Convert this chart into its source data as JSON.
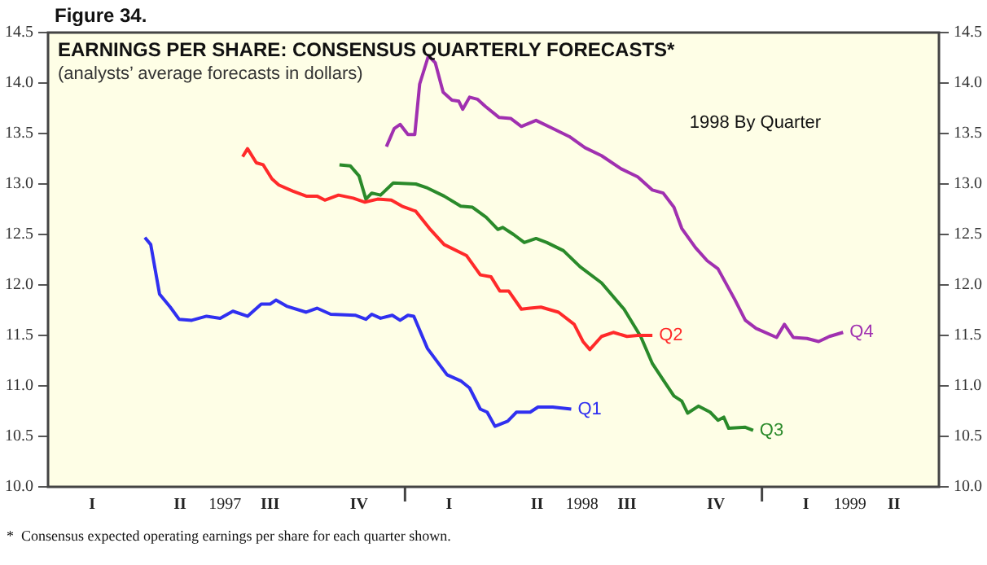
{
  "chart_data": {
    "type": "line",
    "title": "EARNINGS PER SHARE: CONSENSUS QUARTERLY FORECASTS*",
    "subtitle": "(analysts’ average forecasts in dollars)",
    "annotations": [
      "Figure 34.",
      "1998 By Quarter",
      "*  Consensus expected operating earnings per share for each quarter shown."
    ],
    "xlim": [
      "1997-01-01",
      "1999-07-01"
    ],
    "xticks": [
      {
        "value": "1997-02-15",
        "label": "I"
      },
      {
        "value": "1997-05-16",
        "label": "II"
      },
      {
        "value": "1997-08-16",
        "label": "III"
      },
      {
        "value": "1997-11-15",
        "label": "IV"
      },
      {
        "value": "1998-02-15",
        "label": "I"
      },
      {
        "value": "1998-05-16",
        "label": "II"
      },
      {
        "value": "1998-08-16",
        "label": "III"
      },
      {
        "value": "1998-11-15",
        "label": "IV"
      },
      {
        "value": "1999-02-15",
        "label": "I"
      },
      {
        "value": "1999-05-16",
        "label": "II"
      },
      {
        "value": "1998-01-01",
        "label": null
      },
      {
        "value": "1999-01-01",
        "label": null
      },
      {
        "value": "1997-07-01",
        "label": "1997"
      },
      {
        "value": "1998-07-01",
        "label": "1998"
      },
      {
        "value": "1999-04-01",
        "label": "1999"
      }
    ],
    "ylim": [
      10,
      14.5
    ],
    "yticks": [
      {
        "value": 10,
        "label": "10.0"
      },
      {
        "value": 10.5,
        "label": "10.5"
      },
      {
        "value": 11,
        "label": "11.0"
      },
      {
        "value": 11.5,
        "label": "11.5"
      },
      {
        "value": 12,
        "label": "12.0"
      },
      {
        "value": 12.5,
        "label": "12.5"
      },
      {
        "value": 13,
        "label": "13.0"
      },
      {
        "value": 13.5,
        "label": "13.5"
      },
      {
        "value": 14,
        "label": "14.0"
      },
      {
        "value": 14.5,
        "label": "14.5"
      }
    ],
    "y2lim": [
      10,
      14.5
    ],
    "y2ticks": [
      {
        "value": 10,
        "label": "10.0"
      },
      {
        "value": 10.5,
        "label": "10.5"
      },
      {
        "value": 11,
        "label": "11.0"
      },
      {
        "value": 11.5,
        "label": "11.5"
      },
      {
        "value": 12,
        "label": "12.0"
      },
      {
        "value": 12.5,
        "label": "12.5"
      },
      {
        "value": 13,
        "label": "13.0"
      },
      {
        "value": 13.5,
        "label": "13.5"
      },
      {
        "value": 14,
        "label": "14.0"
      },
      {
        "value": 14.5,
        "label": "14.5"
      }
    ],
    "marker": "none",
    "line_style": "solid",
    "grid": false,
    "legend": false,
    "series": [
      {
        "name": "Q1",
        "color": "#3030f0",
        "x": [
          "1997-04-10",
          "1997-04-16",
          "1997-04-25",
          "1997-05-06",
          "1997-05-15",
          "1997-05-28",
          "1997-06-12",
          "1997-06-26",
          "1997-07-09",
          "1997-07-24",
          "1997-08-07",
          "1997-08-16",
          "1997-08-22",
          "1997-09-02",
          "1997-09-22",
          "1997-10-03",
          "1997-10-17",
          "1997-11-11",
          "1997-11-22",
          "1997-11-28",
          "1997-12-07",
          "1997-12-19",
          "1997-12-27",
          "1998-01-04",
          "1998-01-10",
          "1998-01-24",
          "1998-02-13",
          "1998-02-27",
          "1998-03-08",
          "1998-03-19",
          "1998-03-26",
          "1998-04-03",
          "1998-04-16",
          "1998-04-25",
          "1998-05-09",
          "1998-05-17",
          "1998-06-01",
          "1998-06-20"
        ],
        "values": [
          12.47,
          12.4,
          11.91,
          11.78,
          11.66,
          11.65,
          11.69,
          11.67,
          11.74,
          11.69,
          11.81,
          11.81,
          11.85,
          11.79,
          11.73,
          11.77,
          11.71,
          11.7,
          11.66,
          11.71,
          11.67,
          11.7,
          11.65,
          11.7,
          11.69,
          11.37,
          11.11,
          11.05,
          10.98,
          10.77,
          10.74,
          10.6,
          10.65,
          10.74,
          10.74,
          10.79,
          10.79,
          10.77
        ]
      },
      {
        "name": "Q2",
        "color": "#ff2a2a",
        "x": [
          "1997-07-19",
          "1997-07-24",
          "1997-08-02",
          "1997-08-09",
          "1997-08-18",
          "1997-08-25",
          "1997-09-08",
          "1997-09-22",
          "1997-10-03",
          "1997-10-11",
          "1997-10-25",
          "1997-11-09",
          "1997-11-21",
          "1997-12-04",
          "1997-12-18",
          "1997-12-29",
          "1998-01-12",
          "1998-01-26",
          "1998-02-10",
          "1998-03-05",
          "1998-03-19",
          "1998-03-30",
          "1998-04-08",
          "1998-04-17",
          "1998-04-30",
          "1998-05-09",
          "1998-05-20",
          "1998-06-07",
          "1998-06-23",
          "1998-07-02",
          "1998-07-09",
          "1998-07-21",
          "1998-08-02",
          "1998-08-16",
          "1998-08-27",
          "1998-09-11"
        ],
        "values": [
          13.27,
          13.35,
          13.21,
          13.19,
          13.05,
          12.99,
          12.93,
          12.88,
          12.88,
          12.84,
          12.89,
          12.86,
          12.82,
          12.85,
          12.84,
          12.78,
          12.73,
          12.56,
          12.4,
          12.29,
          12.1,
          12.08,
          11.94,
          11.94,
          11.76,
          11.77,
          11.78,
          11.73,
          11.61,
          11.44,
          11.36,
          11.49,
          11.53,
          11.49,
          11.5,
          11.5
        ]
      },
      {
        "name": "Q3",
        "color": "#2a8a2a",
        "x": [
          "1997-10-26",
          "1997-11-06",
          "1997-11-15",
          "1997-11-22",
          "1997-11-28",
          "1997-12-07",
          "1997-12-20",
          "1998-01-12",
          "1998-01-24",
          "1998-02-10",
          "1998-02-27",
          "1998-03-11",
          "1998-03-25",
          "1998-04-06",
          "1998-04-11",
          "1998-04-22",
          "1998-05-03",
          "1998-05-15",
          "1998-05-26",
          "1998-06-12",
          "1998-06-29",
          "1998-07-21",
          "1998-08-13",
          "1998-08-30",
          "1998-09-11",
          "1998-09-22",
          "1998-10-03",
          "1998-10-11",
          "1998-10-17",
          "1998-10-28",
          "1998-11-09",
          "1998-11-17",
          "1998-11-23",
          "1998-11-28",
          "1998-12-15",
          "1998-12-23"
        ],
        "values": [
          13.19,
          13.18,
          13.08,
          12.85,
          12.91,
          12.89,
          13.01,
          13.0,
          12.96,
          12.88,
          12.78,
          12.77,
          12.67,
          12.55,
          12.57,
          12.5,
          12.42,
          12.46,
          12.42,
          12.34,
          12.18,
          12.02,
          11.76,
          11.49,
          11.22,
          11.06,
          10.9,
          10.85,
          10.73,
          10.8,
          10.74,
          10.66,
          10.69,
          10.58,
          10.59,
          10.56
        ]
      },
      {
        "name": "Q4",
        "color": "#a030b0",
        "x": [
          "1997-12-13",
          "1997-12-21",
          "1997-12-27",
          "1998-01-04",
          "1998-01-11",
          "1998-01-16",
          "1998-01-25",
          "1998-02-01",
          "1998-02-09",
          "1998-02-18",
          "1998-02-25",
          "1998-03-01",
          "1998-03-08",
          "1998-03-16",
          "1998-03-24",
          "1998-04-07",
          "1998-04-19",
          "1998-04-30",
          "1998-05-15",
          "1998-06-01",
          "1998-06-18",
          "1998-07-04",
          "1998-07-21",
          "1998-08-10",
          "1998-08-27",
          "1998-09-11",
          "1998-09-22",
          "1998-10-03",
          "1998-10-11",
          "1998-10-25",
          "1998-11-06",
          "1998-11-17",
          "1998-12-04",
          "1998-12-15",
          "1998-12-26",
          "1999-01-16",
          "1999-01-24",
          "1999-02-02",
          "1999-02-16",
          "1999-02-28",
          "1999-03-11",
          "1999-03-25"
        ],
        "values": [
          13.37,
          13.55,
          13.59,
          13.49,
          13.49,
          13.99,
          14.27,
          14.2,
          13.91,
          13.83,
          13.82,
          13.74,
          13.86,
          13.84,
          13.77,
          13.66,
          13.65,
          13.57,
          13.63,
          13.55,
          13.47,
          13.36,
          13.28,
          13.15,
          13.07,
          12.94,
          12.91,
          12.77,
          12.56,
          12.37,
          12.24,
          12.16,
          11.86,
          11.65,
          11.57,
          11.48,
          11.61,
          11.48,
          11.47,
          11.44,
          11.49,
          11.53
        ]
      }
    ]
  }
}
